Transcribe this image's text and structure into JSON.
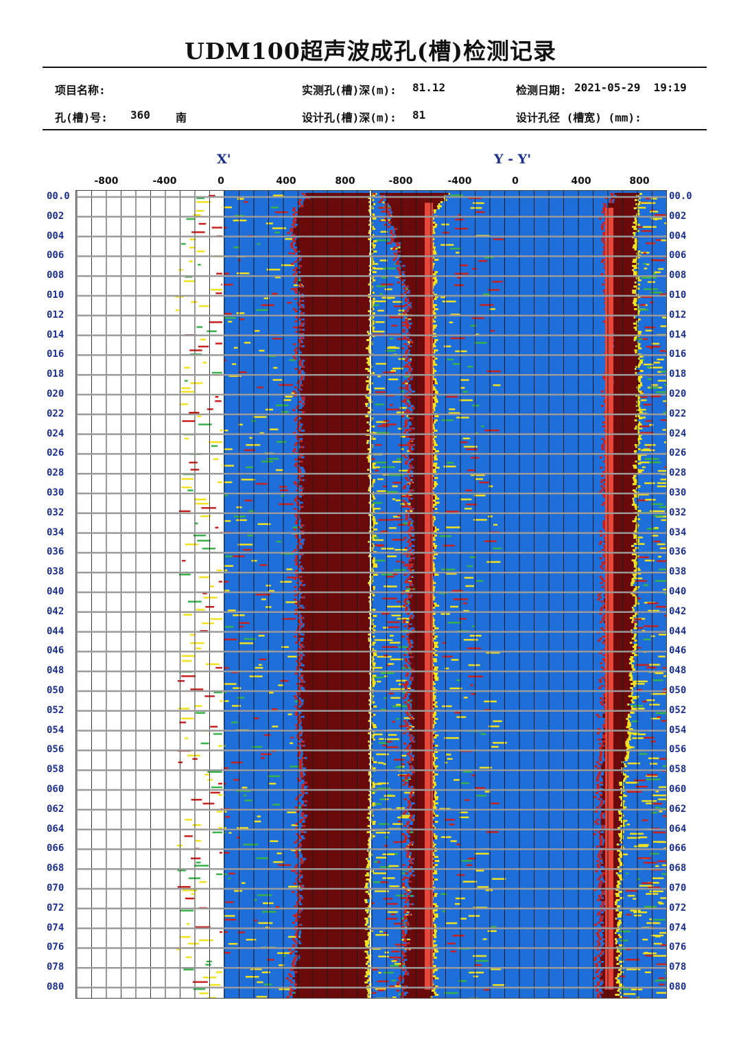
{
  "title": "UDM100超声波成孔(槽)检测记录",
  "info": {
    "project_name_label": "项目名称:",
    "hole_no_label": "孔(槽)号:",
    "hole_no_value": "360",
    "hole_no_dir": "南",
    "measured_depth_label": "实测孔(槽)深(m):",
    "measured_depth_value": "81.12",
    "design_depth_label": "设计孔(槽)深(m):",
    "design_depth_value": "81",
    "test_date_label": "检测日期:",
    "test_date_value": "2021-05-29  19:19",
    "design_diameter_label": "设计孔径 (槽宽) (mm):"
  },
  "chart_data": {
    "type": "heatmap",
    "panels": [
      {
        "title": "X'",
        "x_ticks": [
          "-800",
          "-400",
          "0",
          "400",
          "800"
        ]
      },
      {
        "title": "Y - Y'",
        "x_ticks": [
          "-800",
          "-400",
          "0",
          "400",
          "800"
        ]
      }
    ],
    "depth_labels": [
      "00.0",
      "002",
      "004",
      "006",
      "008",
      "010",
      "012",
      "014",
      "016",
      "018",
      "020",
      "022",
      "024",
      "026",
      "028",
      "030",
      "032",
      "034",
      "036",
      "038",
      "040",
      "042",
      "044",
      "046",
      "048",
      "050",
      "052",
      "054",
      "056",
      "058",
      "060",
      "062",
      "064",
      "066",
      "068",
      "070",
      "072",
      "074",
      "076",
      "078",
      "080"
    ],
    "depth_range": [
      0,
      81.12
    ],
    "depth_unit": "m",
    "colors": {
      "background": "#1e6fd9",
      "wall": "#6b0a0a",
      "noise_yellow": "#f2e21e",
      "noise_red": "#c8201e",
      "noise_green": "#37b34a",
      "marker": "#e8473a",
      "label_blue": "#1a2f8f"
    },
    "walls": {
      "xx_left": [
        [
          0,
          450,
          540
        ],
        [
          3,
          430,
          540
        ],
        [
          10,
          440,
          540
        ],
        [
          20,
          440,
          535
        ],
        [
          30,
          440,
          540
        ],
        [
          50,
          440,
          540
        ],
        [
          60,
          445,
          540
        ],
        [
          70,
          440,
          535
        ],
        [
          80,
          430,
          535
        ]
      ],
      "xx_right": [
        [
          0,
          555,
          650
        ],
        [
          2,
          570,
          630
        ],
        [
          10,
          595,
          630
        ],
        [
          20,
          600,
          630
        ],
        [
          30,
          600,
          630
        ],
        [
          50,
          600,
          630
        ],
        [
          60,
          600,
          630
        ],
        [
          70,
          600,
          630
        ],
        [
          80,
          590,
          630
        ]
      ],
      "yy_right": [
        [
          0,
          895,
          930
        ],
        [
          2,
          885,
          925
        ],
        [
          10,
          890,
          925
        ],
        [
          20,
          890,
          930
        ],
        [
          30,
          885,
          925
        ],
        [
          50,
          885,
          920
        ],
        [
          60,
          878,
          905
        ],
        [
          70,
          880,
          900
        ],
        [
          80,
          878,
          900
        ]
      ]
    },
    "markers": {
      "xx_red_line": {
        "depth_from": 1.0,
        "depth_to": 81.12
      },
      "yy_red_line": {
        "depth_from": 1.5,
        "depth_to": 81.12
      }
    }
  }
}
